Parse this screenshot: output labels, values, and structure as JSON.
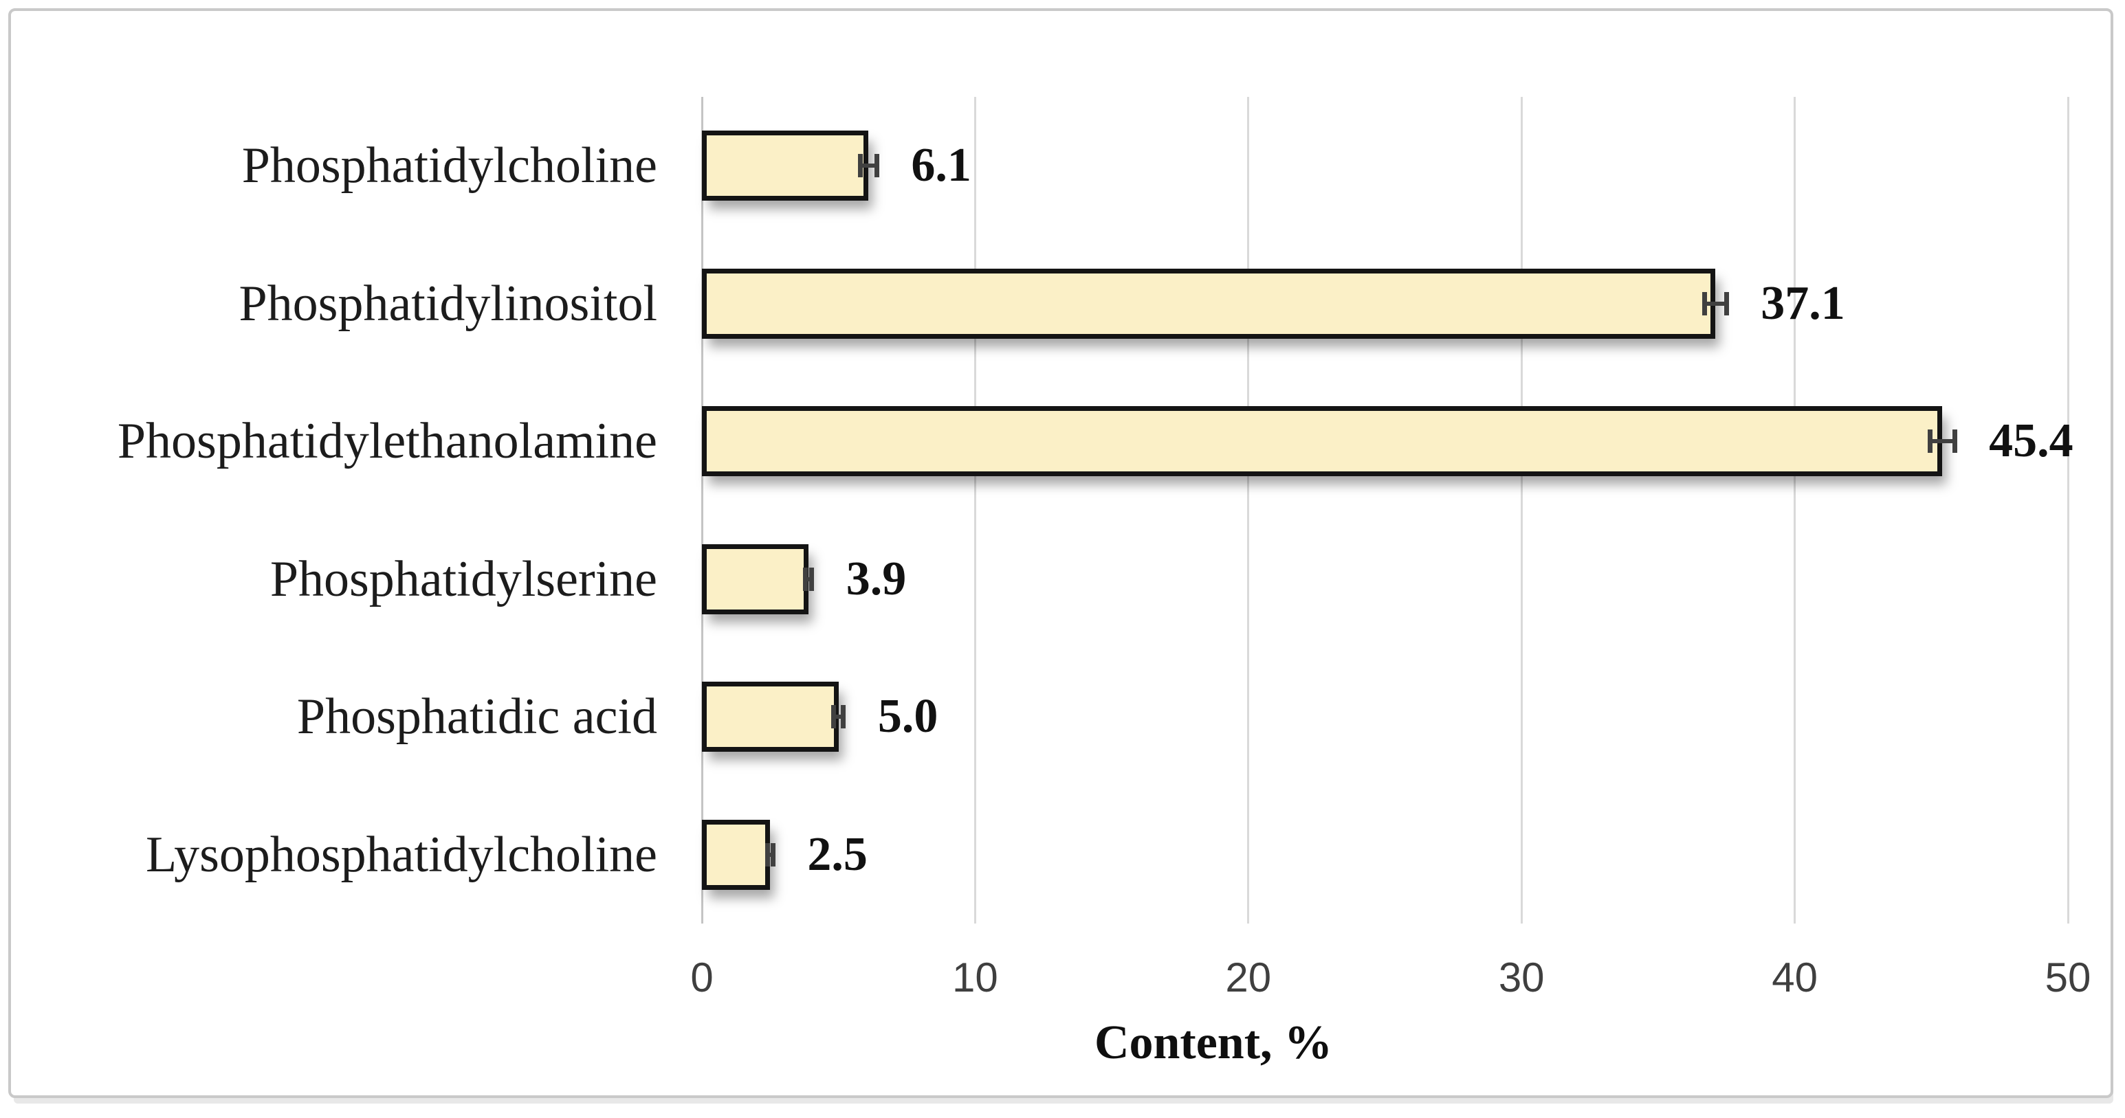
{
  "figure": {
    "background": "#ffffff",
    "frame_border_color": "#c9c9c9"
  },
  "chart_data": {
    "type": "bar",
    "orientation": "horizontal",
    "title": "",
    "xlabel": "Content, %",
    "ylabel": "",
    "categories": [
      "Phosphatidylcholine",
      "Phosphatidylinositol",
      "Phosphatidylethanolamine",
      "Phosphatidylserine",
      "Phosphatidic acid",
      "Lysophosphatidylcholine"
    ],
    "values": [
      6.1,
      37.1,
      45.4,
      3.9,
      5.0,
      2.5
    ],
    "data_labels": [
      "6.1",
      "37.1",
      "45.4",
      "3.9",
      "5.0",
      "2.5"
    ],
    "errors": [
      0.3,
      0.4,
      0.45,
      0.12,
      0.18,
      0.1
    ],
    "xlim": [
      0,
      50
    ],
    "xticks": [
      0,
      10,
      20,
      30,
      40,
      50
    ],
    "grid": "vertical-major",
    "legend": "none",
    "bar_fill_color": "#fbf0c7",
    "bar_border_color": "#141414",
    "error_bar_color": "#404040",
    "gridline_color": "#d9d9d9",
    "tick_label_color": "#3f3f3f",
    "category_label_color": "#1c1c1c"
  }
}
